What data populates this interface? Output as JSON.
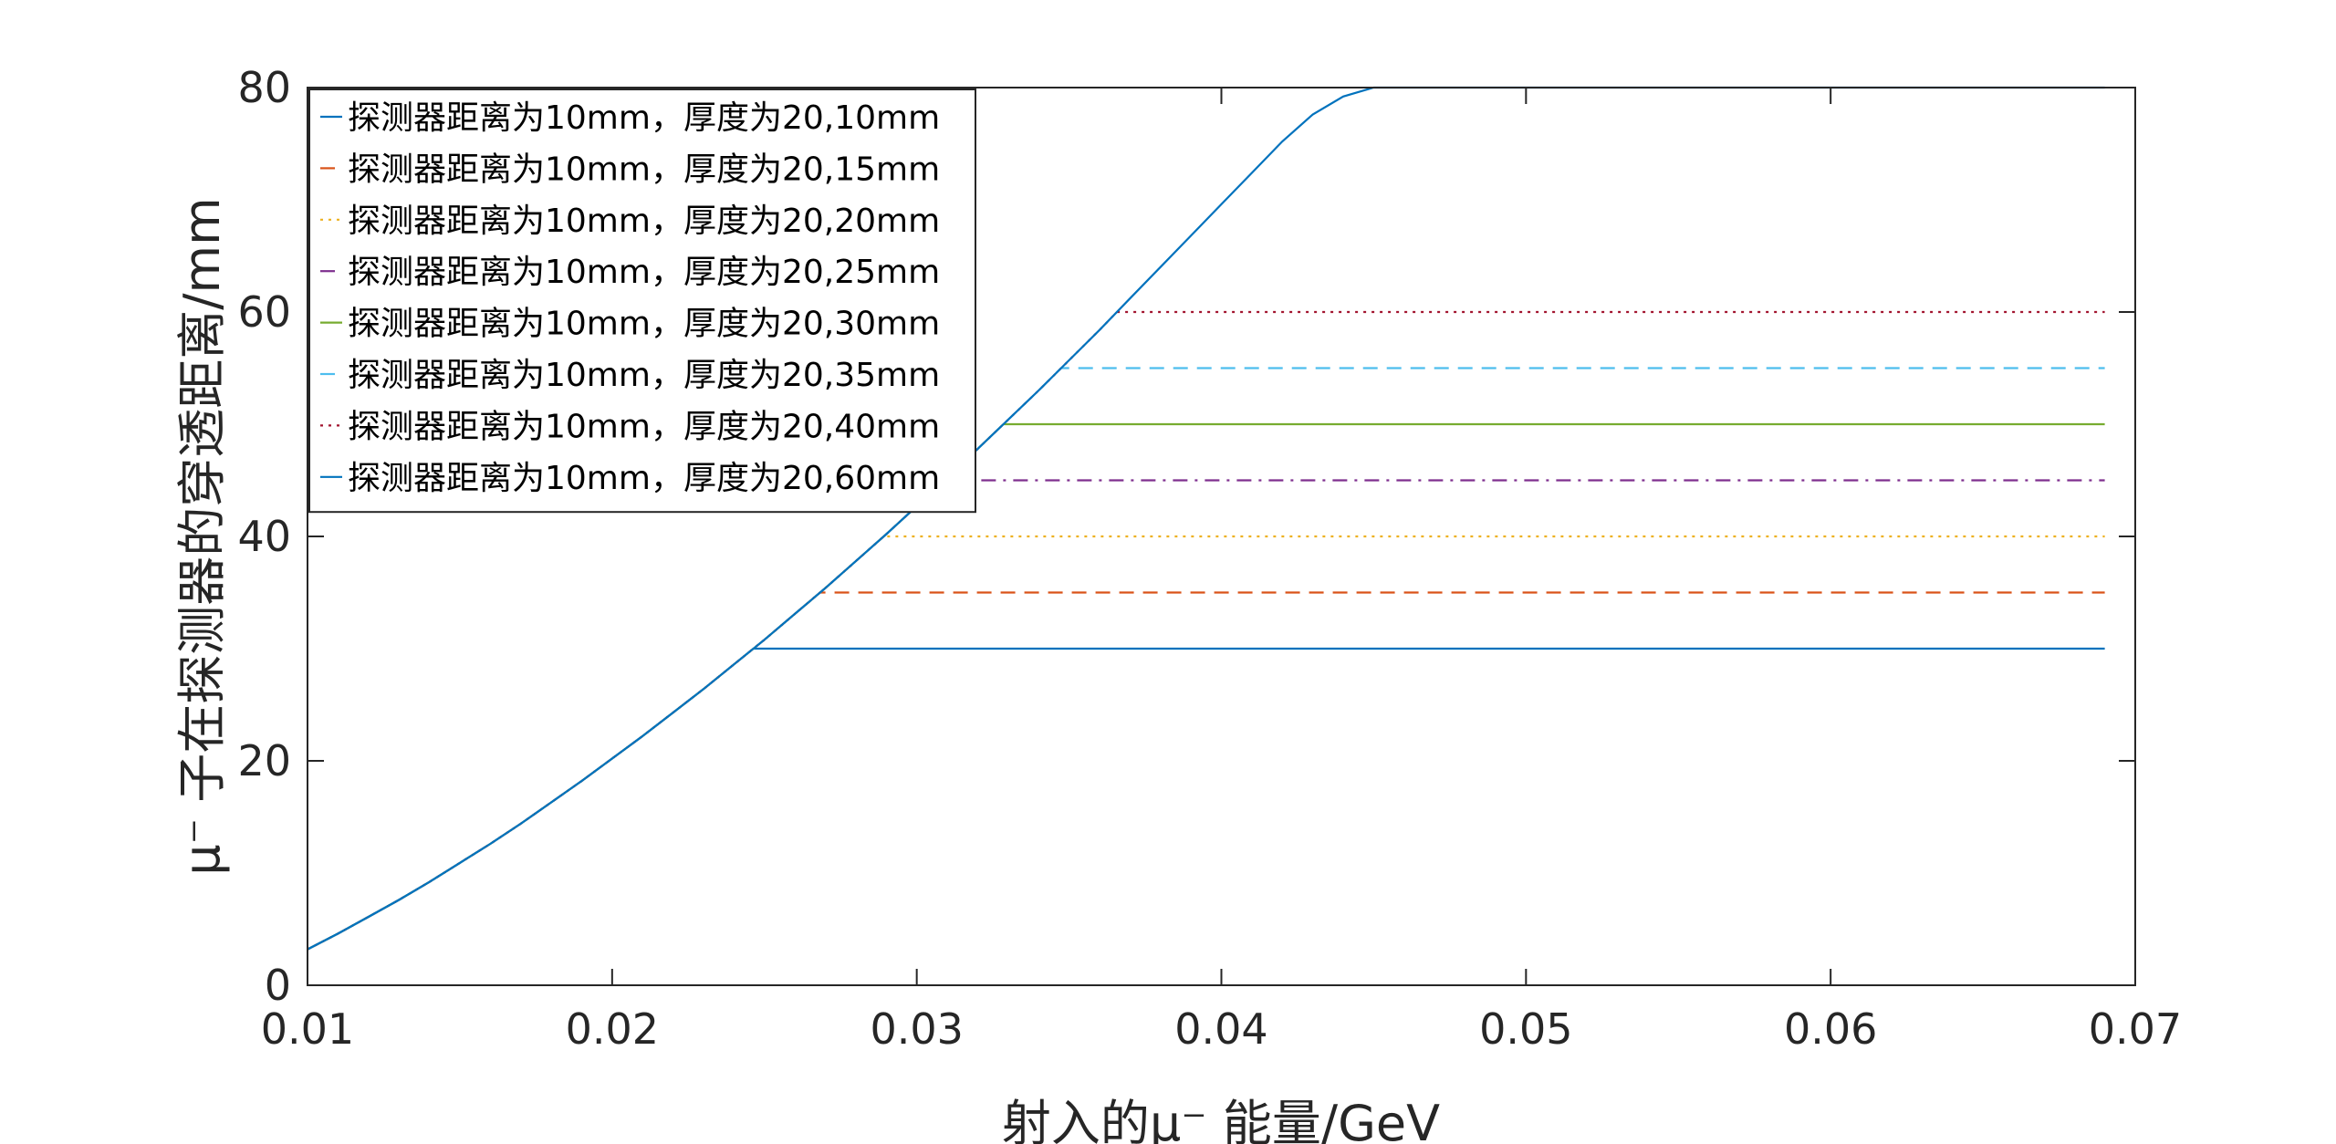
{
  "chart_data": {
    "type": "line",
    "xlabel": "射入的μ⁻ 能量/GeV",
    "ylabel": "μ⁻ 子在探测器的穿透距离/mm",
    "xlim": [
      0.01,
      0.07
    ],
    "ylim": [
      0,
      80
    ],
    "xticks": [
      "0.01",
      "0.02",
      "0.03",
      "0.04",
      "0.05",
      "0.06",
      "0.07"
    ],
    "yticks": [
      "0",
      "20",
      "40",
      "60",
      "80"
    ],
    "grid": false,
    "legend_position": "top-left",
    "base_curve": {
      "x": [
        0.01,
        0.011,
        0.012,
        0.013,
        0.014,
        0.015,
        0.016,
        0.017,
        0.018,
        0.019,
        0.02,
        0.021,
        0.022,
        0.023,
        0.024,
        0.025,
        0.026,
        0.027,
        0.028,
        0.029,
        0.03,
        0.031,
        0.032,
        0.033,
        0.034,
        0.035,
        0.036,
        0.037,
        0.038,
        0.039,
        0.04,
        0.041,
        0.042,
        0.043,
        0.044,
        0.045,
        0.046,
        0.047,
        0.048,
        0.049,
        0.05,
        0.051
      ],
      "y": [
        3.2,
        4.6,
        6.1,
        7.6,
        9.2,
        10.9,
        12.6,
        14.4,
        16.3,
        18.2,
        20.2,
        22.2,
        24.3,
        26.4,
        28.6,
        30.8,
        33.1,
        35.4,
        37.8,
        40.2,
        42.7,
        45.2,
        47.8,
        50.4,
        53.0,
        55.7,
        58.4,
        61.2,
        64.0,
        66.8,
        69.6,
        72.4,
        75.2,
        77.6,
        79.2,
        80.0,
        80.0,
        80.0,
        80.0,
        80.0,
        80.0,
        80.0
      ]
    },
    "series": [
      {
        "name": "探测器距离为10mm，厚度为20,10mm",
        "plateau": 30,
        "color": "#0072BD",
        "dash": "solid"
      },
      {
        "name": "探测器距离为10mm，厚度为20,15mm",
        "plateau": 35,
        "color": "#D95319",
        "dash": "dashed"
      },
      {
        "name": "探测器距离为10mm，厚度为20,20mm",
        "plateau": 40,
        "color": "#EDB120",
        "dash": "dotted"
      },
      {
        "name": "探测器距离为10mm，厚度为20,25mm",
        "plateau": 45,
        "color": "#7E2F8E",
        "dash": "dashdot"
      },
      {
        "name": "探测器距离为10mm，厚度为20,30mm",
        "plateau": 50,
        "color": "#77AC30",
        "dash": "solid"
      },
      {
        "name": "探测器距离为10mm，厚度为20,35mm",
        "plateau": 55,
        "color": "#4DBEEE",
        "dash": "dashed"
      },
      {
        "name": "探测器距离为10mm，厚度为20,40mm",
        "plateau": 60,
        "color": "#A2142F",
        "dash": "dotted"
      },
      {
        "name": "探测器距离为10mm，厚度为20,60mm",
        "plateau": 80,
        "color": "#0072BD",
        "dash": "solid"
      }
    ]
  }
}
